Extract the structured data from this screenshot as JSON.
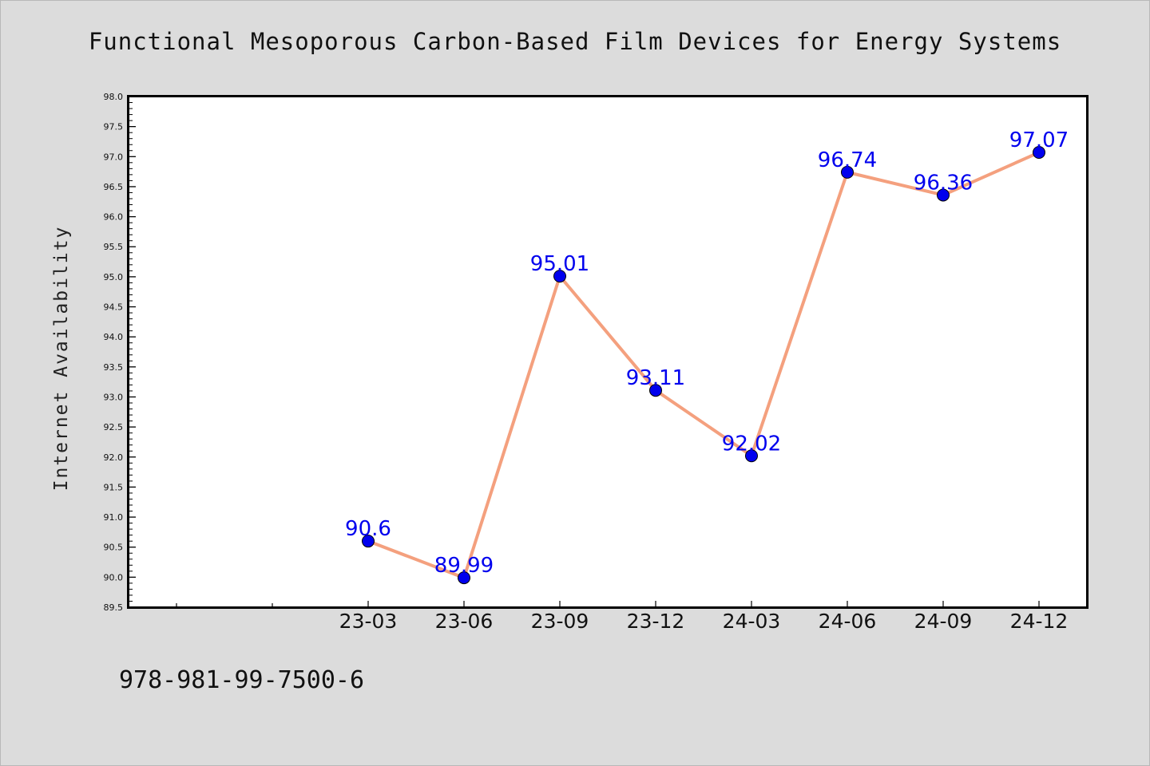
{
  "chart_data": {
    "type": "line",
    "title": "Functional Mesoporous Carbon-Based Film Devices for Energy Systems",
    "xlabel": "",
    "ylabel": "Internet Availability",
    "x": [
      "23-03",
      "23-06",
      "23-09",
      "23-12",
      "24-03",
      "24-06",
      "24-09",
      "24-12"
    ],
    "series": [
      {
        "values": [
          90.6,
          89.99,
          95.01,
          93.11,
          92.02,
          96.74,
          96.36,
          97.07
        ],
        "labels": [
          "90.6",
          "89.99",
          "95.01",
          "93.11",
          "92.02",
          "96.74",
          "96.36",
          "97.07"
        ]
      }
    ],
    "yticks": [
      "89.5",
      "90.0",
      "90.5",
      "91.0",
      "91.5",
      "92.0",
      "92.5",
      "93.0",
      "93.5",
      "94.0",
      "94.5",
      "95.0",
      "95.5",
      "96.0",
      "96.5",
      "97.0",
      "97.5",
      "98.0"
    ],
    "ylim": [
      89.5,
      98.0
    ],
    "grid": false,
    "colors": {
      "line": "#f4a07e",
      "marker": "#0000ee",
      "label": "#0000ee"
    }
  },
  "footer": {
    "isbn": "978-981-99-7500-6"
  }
}
